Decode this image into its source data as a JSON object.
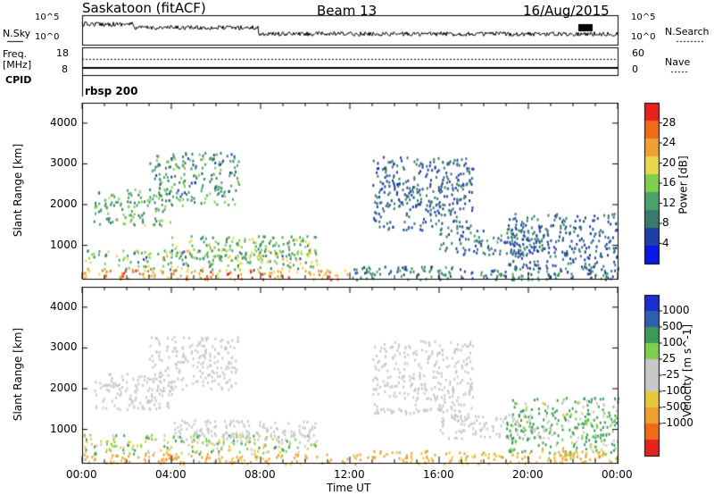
{
  "header": {
    "station": "Saskatoon (fitACF)",
    "beam": "Beam 13",
    "date": "16/Aug/2015"
  },
  "noise_panel": {
    "left_label": "N.Sky",
    "right_label": "N.Search",
    "left_ticks": [
      "10^5",
      "10^0"
    ],
    "right_ticks": [
      "10^5",
      "10^0"
    ]
  },
  "freq_panel": {
    "left_label_1": "Freq.",
    "left_label_2": "[MHz]",
    "right_label": "Nave",
    "left_ticks": [
      "18",
      "8"
    ],
    "right_ticks": [
      "60",
      "0"
    ]
  },
  "cpid": {
    "label": "CPID",
    "value": "rbsp 200"
  },
  "colors": {
    "axis": "#000000",
    "noise_line": "#000000",
    "power_scale": [
      "#0a17e6",
      "#1f3fa8",
      "#3a7a6a",
      "#4aa36a",
      "#7fcf4f",
      "#e8d84a",
      "#f0a030",
      "#f06a18",
      "#e8221c"
    ],
    "velocity_scale": [
      "#e8221c",
      "#f06a18",
      "#f0a030",
      "#e8c83a",
      "#c8c8c8",
      "#c8c8c8",
      "#7fcf4f",
      "#3a9a5a",
      "#2f5fb0",
      "#1a2fd0"
    ]
  },
  "chart_data": [
    {
      "type": "heatmap",
      "name": "power",
      "ylabel": "Slant Range [km]",
      "colorbar_label": "Power [dB]",
      "colorbar_ticks": [
        "28",
        "24",
        "20",
        "16",
        "12",
        "8",
        "4"
      ],
      "ylim": [
        180,
        4500
      ],
      "yticks": [
        "1000",
        "2000",
        "3000",
        "4000"
      ],
      "xlim": [
        0,
        24
      ],
      "xticks": [
        "00:00",
        "04:00",
        "08:00",
        "12:00",
        "16:00",
        "20:00",
        "00:00"
      ],
      "xlabel": "",
      "features": [
        {
          "t": [
            0.0,
            12.0
          ],
          "r": [
            180,
            420
          ],
          "v": [
            18,
            30
          ]
        },
        {
          "t": [
            0.0,
            10.5
          ],
          "r": [
            420,
            900
          ],
          "v": [
            6,
            22
          ]
        },
        {
          "t": [
            4.0,
            10.5
          ],
          "r": [
            700,
            1250
          ],
          "v": [
            8,
            20
          ]
        },
        {
          "t": [
            0.5,
            4.0
          ],
          "r": [
            1500,
            2400
          ],
          "v": [
            8,
            18
          ]
        },
        {
          "t": [
            3.0,
            7.0
          ],
          "r": [
            2000,
            3300
          ],
          "v": [
            6,
            16
          ]
        },
        {
          "t": [
            13.0,
            17.5
          ],
          "r": [
            1400,
            3200
          ],
          "v": [
            4,
            10
          ]
        },
        {
          "t": [
            16.0,
            21.0
          ],
          "r": [
            800,
            1400
          ],
          "v": [
            4,
            12
          ]
        },
        {
          "t": [
            19.0,
            24.0
          ],
          "r": [
            400,
            1800
          ],
          "v": [
            4,
            10
          ]
        },
        {
          "t": [
            12.0,
            24.0
          ],
          "r": [
            180,
            500
          ],
          "v": [
            4,
            14
          ]
        }
      ]
    },
    {
      "type": "heatmap",
      "name": "velocity",
      "ylabel": "Slant Range [km]",
      "colorbar_label": "Velocity [m s^-1]",
      "colorbar_ticks": [
        "1000",
        "500",
        "100",
        "25",
        "-25",
        "-100",
        "-500",
        "-1000"
      ],
      "ylim": [
        180,
        4500
      ],
      "yticks": [
        "1000",
        "2000",
        "3000",
        "4000"
      ],
      "xlim": [
        0,
        24
      ],
      "xticks": [
        "00:00",
        "04:00",
        "08:00",
        "12:00",
        "16:00",
        "20:00",
        "00:00"
      ],
      "xlabel": "Time UT",
      "features": [
        {
          "t": [
            0.0,
            12.0
          ],
          "r": [
            180,
            420
          ],
          "v": [
            -300,
            -50
          ]
        },
        {
          "t": [
            0.0,
            10.5
          ],
          "r": [
            420,
            900
          ],
          "v": [
            -100,
            150
          ]
        },
        {
          "t": [
            4.0,
            10.5
          ],
          "r": [
            700,
            1250
          ],
          "v": [
            -25,
            25
          ]
        },
        {
          "t": [
            0.5,
            4.0
          ],
          "r": [
            1500,
            2400
          ],
          "v": [
            -25,
            25
          ]
        },
        {
          "t": [
            3.0,
            7.0
          ],
          "r": [
            2000,
            3300
          ],
          "v": [
            -25,
            25
          ]
        },
        {
          "t": [
            13.0,
            17.5
          ],
          "r": [
            1400,
            3200
          ],
          "v": [
            -25,
            25
          ]
        },
        {
          "t": [
            16.0,
            21.0
          ],
          "r": [
            800,
            1400
          ],
          "v": [
            -25,
            25
          ]
        },
        {
          "t": [
            19.0,
            24.0
          ],
          "r": [
            400,
            1800
          ],
          "v": [
            -50,
            400
          ]
        },
        {
          "t": [
            12.0,
            24.0
          ],
          "r": [
            180,
            500
          ],
          "v": [
            -200,
            -25
          ]
        }
      ]
    }
  ]
}
